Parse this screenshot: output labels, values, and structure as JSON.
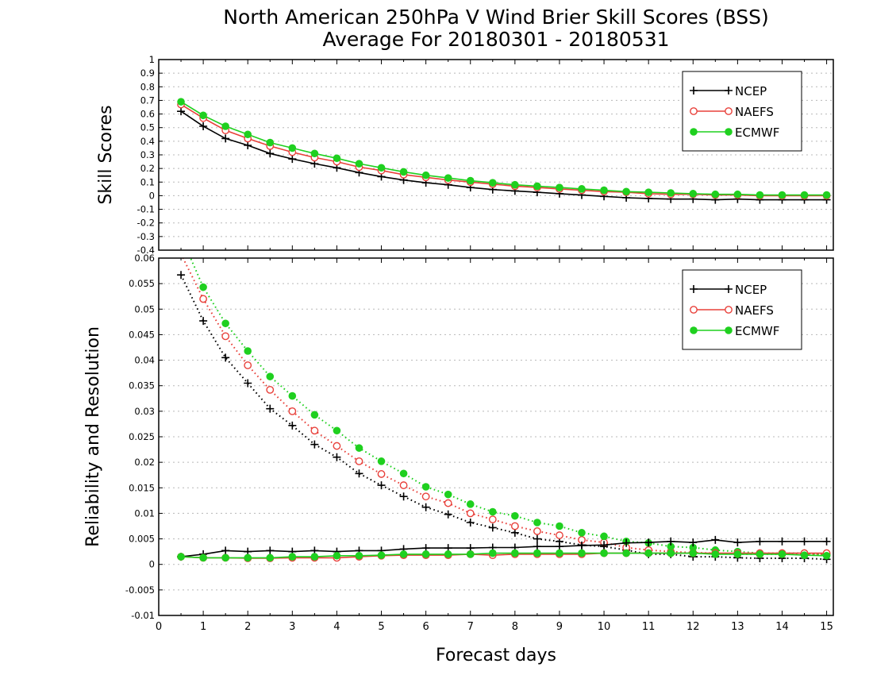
{
  "title_line1": "North American 250hPa V Wind Brier Skill Scores (BSS)",
  "title_line2": "Average For 20180301 - 20180531",
  "xlabel": "Forecast days",
  "colors": {
    "NCEP": "#000000",
    "NAEFS": "#e8403a",
    "ECMWF": "#1fd01f"
  },
  "chart_data": [
    {
      "type": "line",
      "ylabel": "Skill Scores",
      "ylim": [
        -0.4,
        1
      ],
      "xlim": [
        0,
        15.15
      ],
      "yticks": [
        "-0.4",
        "-0.3",
        "-0.2",
        "-0.1",
        "0",
        "0.1",
        "0.2",
        "0.3",
        "0.4",
        "0.5",
        "0.6",
        "0.7",
        "0.8",
        "0.9",
        "1"
      ],
      "xticks": [
        "0",
        "1",
        "2",
        "3",
        "4",
        "5",
        "6",
        "7",
        "8",
        "9",
        "10",
        "11",
        "12",
        "13",
        "14",
        "15"
      ],
      "grid": true,
      "legend_position": "top-right",
      "x": [
        0.5,
        1,
        1.5,
        2,
        2.5,
        3,
        3.5,
        4,
        4.5,
        5,
        5.5,
        6,
        6.5,
        7,
        7.5,
        8,
        8.5,
        9,
        9.5,
        10,
        10.5,
        11,
        11.5,
        12,
        12.5,
        13,
        13.5,
        14,
        14.5,
        15
      ],
      "series": [
        {
          "name": "NCEP",
          "marker": "plus",
          "values": [
            0.62,
            0.51,
            0.42,
            0.37,
            0.31,
            0.27,
            0.235,
            0.205,
            0.17,
            0.14,
            0.115,
            0.095,
            0.08,
            0.06,
            0.045,
            0.035,
            0.025,
            0.015,
            0.005,
            -0.005,
            -0.015,
            -0.02,
            -0.025,
            -0.025,
            -0.03,
            -0.025,
            -0.03,
            -0.03,
            -0.03,
            -0.03
          ]
        },
        {
          "name": "NAEFS",
          "marker": "open-circle",
          "values": [
            0.67,
            0.57,
            0.48,
            0.42,
            0.365,
            0.32,
            0.28,
            0.25,
            0.21,
            0.185,
            0.155,
            0.135,
            0.115,
            0.1,
            0.085,
            0.07,
            0.06,
            0.05,
            0.04,
            0.03,
            0.025,
            0.015,
            0.01,
            0.01,
            0.005,
            0.005,
            0.0,
            0.0,
            0.0,
            0.0
          ]
        },
        {
          "name": "ECMWF",
          "marker": "filled-circle",
          "values": [
            0.69,
            0.59,
            0.51,
            0.45,
            0.39,
            0.35,
            0.31,
            0.275,
            0.235,
            0.205,
            0.175,
            0.15,
            0.13,
            0.11,
            0.095,
            0.08,
            0.07,
            0.06,
            0.05,
            0.04,
            0.03,
            0.025,
            0.02,
            0.015,
            0.01,
            0.01,
            0.005,
            0.005,
            0.005,
            0.005
          ]
        }
      ]
    },
    {
      "type": "line",
      "ylabel": "Reliability and Resolution",
      "ylim": [
        -0.01,
        0.06
      ],
      "xlim": [
        0,
        15.15
      ],
      "yticks": [
        "-0.01",
        "-0.005",
        "0",
        "0.005",
        "0.01",
        "0.015",
        "0.02",
        "0.025",
        "0.03",
        "0.035",
        "0.04",
        "0.045",
        "0.05",
        "0.055",
        "0.06"
      ],
      "xticks": [
        "0",
        "1",
        "2",
        "3",
        "4",
        "5",
        "6",
        "7",
        "8",
        "9",
        "10",
        "11",
        "12",
        "13",
        "14",
        "15"
      ],
      "grid": true,
      "legend_position": "top-right",
      "x": [
        0.5,
        1,
        1.5,
        2,
        2.5,
        3,
        3.5,
        4,
        4.5,
        5,
        5.5,
        6,
        6.5,
        7,
        7.5,
        8,
        8.5,
        9,
        9.5,
        10,
        10.5,
        11,
        11.5,
        12,
        12.5,
        13,
        13.5,
        14,
        14.5,
        15
      ],
      "series": [
        {
          "name": "NCEP",
          "role": "resolution",
          "style": "dotted",
          "marker": "plus",
          "values": [
            0.0567,
            0.0477,
            0.0405,
            0.0355,
            0.0305,
            0.0272,
            0.0235,
            0.021,
            0.0178,
            0.0155,
            0.0133,
            0.0112,
            0.0098,
            0.0082,
            0.0072,
            0.0062,
            0.005,
            0.0045,
            0.0038,
            0.0035,
            0.0028,
            0.002,
            0.002,
            0.0015,
            0.0015,
            0.0013,
            0.0012,
            0.0012,
            0.0012,
            0.001
          ]
        },
        {
          "name": "NAEFS",
          "role": "resolution",
          "style": "dotted",
          "marker": "open-circle",
          "values": [
            0.0608,
            0.052,
            0.0447,
            0.039,
            0.0342,
            0.03,
            0.0262,
            0.0232,
            0.0202,
            0.0177,
            0.0155,
            0.0133,
            0.012,
            0.01,
            0.0088,
            0.0075,
            0.0065,
            0.0057,
            0.0048,
            0.0043,
            0.0033,
            0.0028,
            0.0025,
            0.0023,
            0.0022,
            0.002,
            0.002,
            0.002,
            0.002,
            0.002
          ]
        },
        {
          "name": "ECMWF",
          "role": "resolution",
          "style": "dotted",
          "marker": "filled-circle",
          "values": [
            0.0643,
            0.0543,
            0.0472,
            0.0418,
            0.0368,
            0.033,
            0.0293,
            0.0262,
            0.0228,
            0.0202,
            0.0178,
            0.0152,
            0.0137,
            0.0118,
            0.0103,
            0.0095,
            0.0082,
            0.0075,
            0.0062,
            0.0055,
            0.0045,
            0.0042,
            0.0035,
            0.0033,
            0.0028,
            0.0025,
            0.0022,
            0.0022,
            0.0022,
            0.0018
          ]
        },
        {
          "name": "NCEP",
          "role": "reliability",
          "style": "solid",
          "marker": "plus",
          "values": [
            0.0015,
            0.002,
            0.0027,
            0.0025,
            0.0027,
            0.0025,
            0.0027,
            0.0025,
            0.0027,
            0.0027,
            0.003,
            0.0032,
            0.0032,
            0.0032,
            0.0033,
            0.0033,
            0.0035,
            0.0035,
            0.0037,
            0.0038,
            0.0042,
            0.0043,
            0.0045,
            0.0043,
            0.0048,
            0.0043,
            0.0045,
            0.0045,
            0.0045,
            0.0045
          ]
        },
        {
          "name": "NAEFS",
          "role": "reliability",
          "style": "solid",
          "marker": "open-circle",
          "values": [
            0.0015,
            0.0013,
            0.0013,
            0.0012,
            0.0012,
            0.0013,
            0.0013,
            0.0013,
            0.0015,
            0.0017,
            0.0018,
            0.0018,
            0.0018,
            0.002,
            0.0018,
            0.002,
            0.002,
            0.002,
            0.002,
            0.0022,
            0.0022,
            0.0022,
            0.0022,
            0.0022,
            0.0022,
            0.0022,
            0.0022,
            0.0022,
            0.0022,
            0.0022
          ]
        },
        {
          "name": "ECMWF",
          "role": "reliability",
          "style": "solid",
          "marker": "filled-circle",
          "values": [
            0.0015,
            0.0013,
            0.0013,
            0.0013,
            0.0013,
            0.0015,
            0.0015,
            0.0017,
            0.0017,
            0.0018,
            0.002,
            0.002,
            0.002,
            0.002,
            0.0022,
            0.0022,
            0.0022,
            0.0022,
            0.0022,
            0.0022,
            0.0022,
            0.0022,
            0.0022,
            0.0022,
            0.002,
            0.002,
            0.002,
            0.002,
            0.0018,
            0.0017
          ]
        }
      ]
    }
  ]
}
